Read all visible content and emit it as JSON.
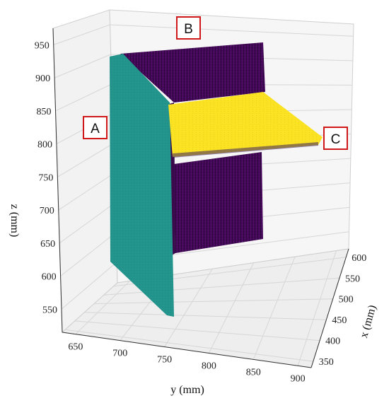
{
  "chart_data": {
    "type": "scatter",
    "projection": "3d",
    "title": "",
    "xlabel": "x (mm)",
    "ylabel": "y (mm)",
    "zlabel": "z (mm)",
    "y_ticks": [
      "650",
      "700",
      "750",
      "800",
      "850",
      "900"
    ],
    "x_ticks": [
      "350",
      "400",
      "450",
      "500",
      "550",
      "600"
    ],
    "z_ticks": [
      "550",
      "600",
      "650",
      "700",
      "750",
      "800",
      "850",
      "900",
      "950"
    ],
    "grid": true,
    "series": [
      {
        "color": "#440154",
        "shape": "vertical plane",
        "label": "B"
      },
      {
        "color": "#21908d",
        "shape": "vertical plane",
        "label": "A"
      },
      {
        "color": "#fde725",
        "shape": "horizontal plane",
        "label": "C"
      }
    ],
    "annotations": [
      "A",
      "B",
      "C"
    ]
  },
  "colors": {
    "purple": "#440154",
    "teal": "#21908d",
    "yellow": "#fde725",
    "callout_border": "#d01818"
  }
}
